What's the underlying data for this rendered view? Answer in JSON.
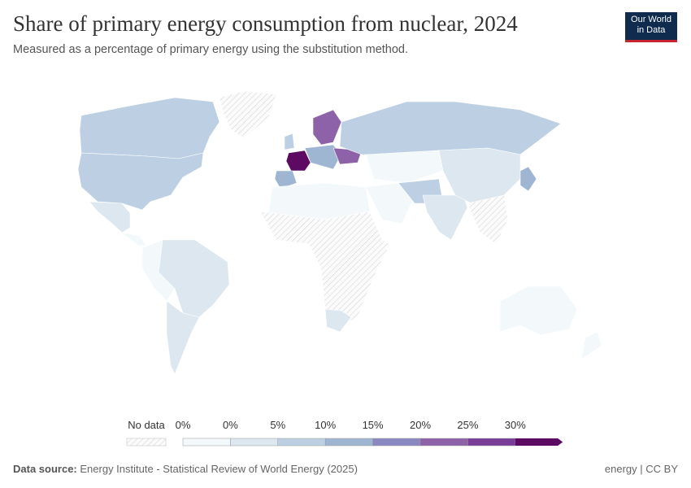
{
  "header": {
    "title": "Share of primary energy consumption from nuclear, 2024",
    "subtitle": "Measured as a percentage of primary energy using the substitution method.",
    "logo": [
      "Our World",
      "in Data"
    ]
  },
  "legend": {
    "no_data": "No data",
    "ticks": [
      "0%",
      "0%",
      "5%",
      "10%",
      "15%",
      "20%",
      "25%",
      "30%"
    ],
    "colors": [
      "#f3f9fa",
      "#dce7f0",
      "#bdd0e3",
      "#9fb6d3",
      "#8a88c0",
      "#8e62a9",
      "#7a3d97",
      "#5d0b62"
    ]
  },
  "footer": {
    "source_label": "Data source:",
    "source": "Energy Institute - Statistical Review of World Energy (2025)",
    "license": "energy | CC BY"
  }
}
